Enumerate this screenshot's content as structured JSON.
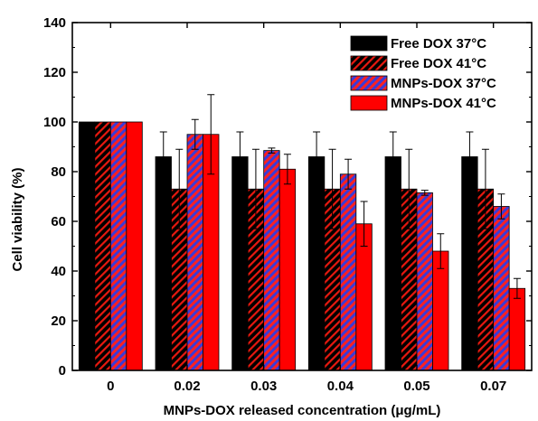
{
  "chart_data": {
    "type": "bar",
    "xlabel": "MNPs-DOX released concentration (μg/mL)",
    "ylabel": "Cell viability (%)",
    "categories": [
      "0",
      "0.02",
      "0.03",
      "0.04",
      "0.05",
      "0.07"
    ],
    "ylim": [
      0,
      140
    ],
    "yticks": [
      "0",
      "20",
      "40",
      "60",
      "80",
      "100",
      "120",
      "140"
    ],
    "legend_position": "top-right",
    "error_bars": true,
    "series": [
      {
        "name": "Free DOX 37°C",
        "values": [
          100,
          86,
          86,
          86,
          86,
          86
        ],
        "errors": [
          0,
          10,
          10,
          10,
          10,
          10
        ],
        "color": "#000000",
        "pattern": "solid"
      },
      {
        "name": "Free DOX 41°C",
        "values": [
          100,
          73,
          73,
          73,
          73,
          73
        ],
        "errors": [
          0,
          16,
          16,
          16,
          16,
          16
        ],
        "color": "#000000",
        "hatch_color": "#e8190f",
        "pattern": "diagonal-hatch"
      },
      {
        "name": "MNPs-DOX 37°C",
        "values": [
          100,
          95,
          88.5,
          79,
          71.5,
          66
        ],
        "errors": [
          0,
          6,
          1,
          6,
          1,
          5
        ],
        "color": "#ff2020",
        "hatch_color": "#3b3bd6",
        "pattern": "diagonal-hatch"
      },
      {
        "name": "MNPs-DOX 41°C",
        "values": [
          100,
          95,
          81,
          59,
          48,
          33
        ],
        "errors": [
          0,
          16,
          6,
          9,
          7,
          4
        ],
        "color": "#ff0000",
        "pattern": "solid"
      }
    ]
  }
}
